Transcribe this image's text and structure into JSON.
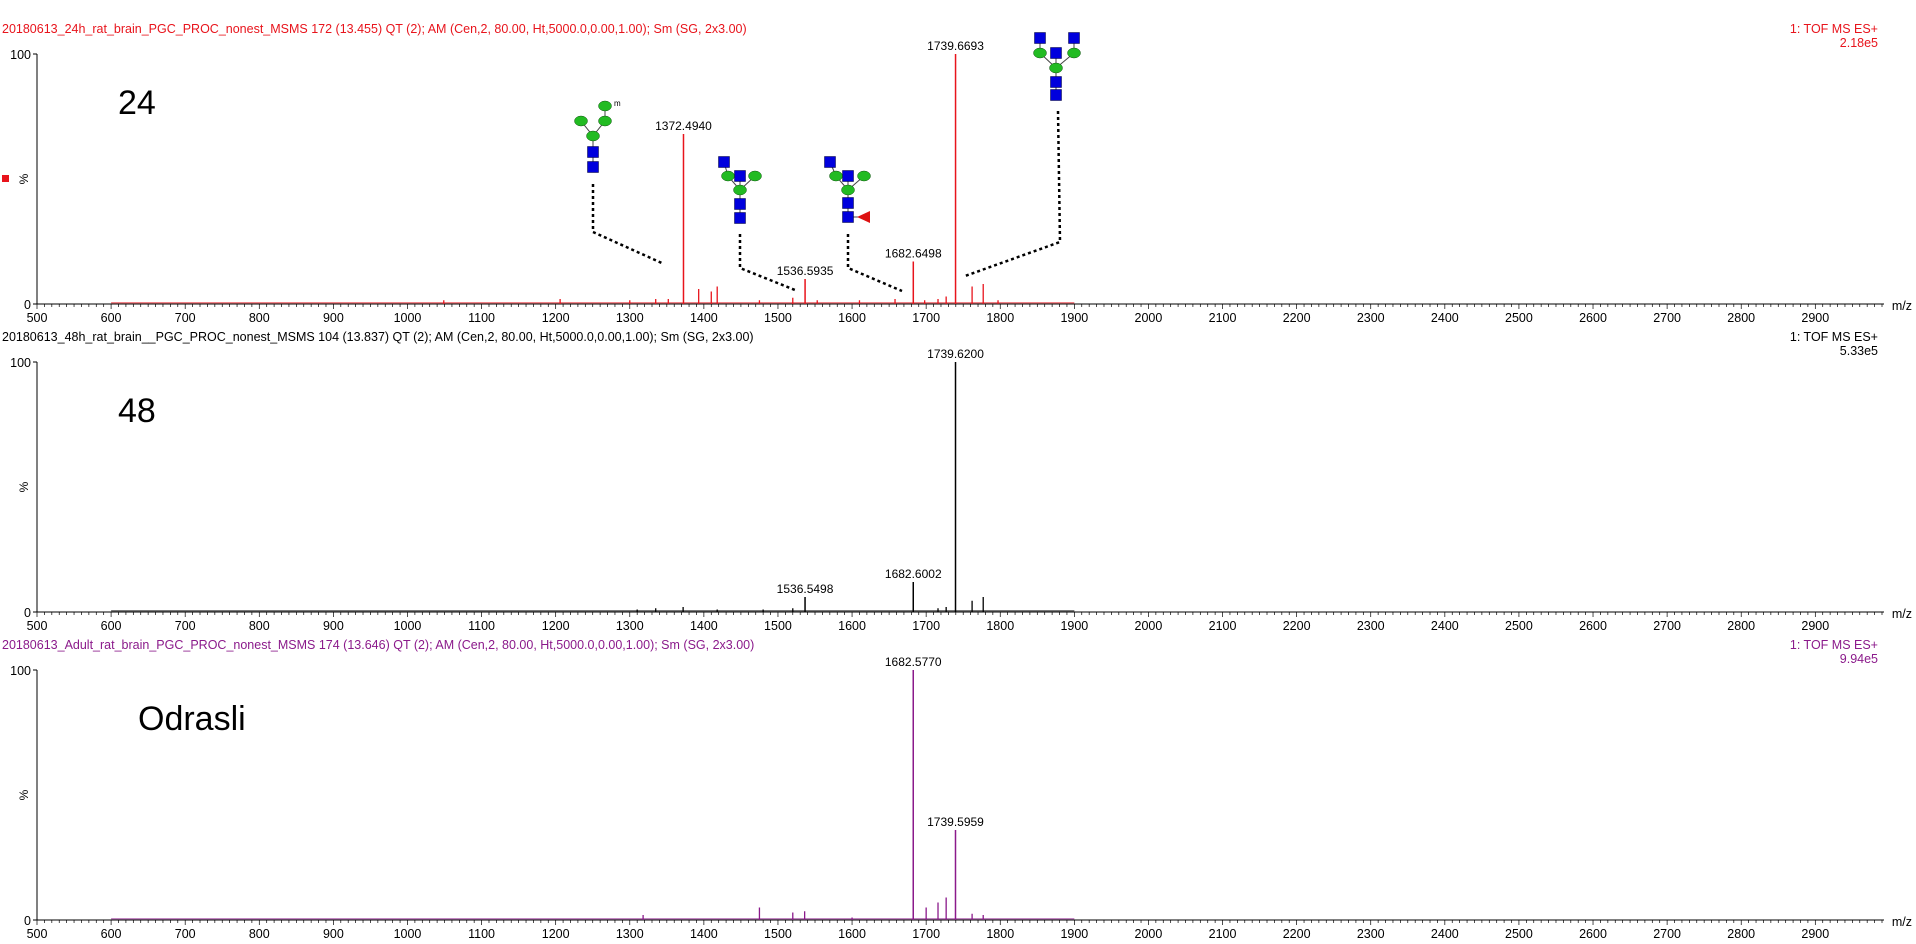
{
  "chart_data": [
    {
      "type": "bar",
      "header": "20180613_24h_rat_brain_PGC_PROC_nonest_MSMS  172 (13.455) QT (2); AM (Cen,2, 80.00, Ht,5000.0,0.00,1.00); Sm (SG, 2x3.00)",
      "mode_label": "1: TOF MS ES+",
      "max_intensity": "2.18e5",
      "sample_label": "24",
      "color": "#e8141c",
      "ylabel": "%",
      "ylim": [
        0,
        100
      ],
      "y_ticks": [
        "100",
        "0"
      ],
      "xlabel": "m/z",
      "xlim": [
        500,
        2990
      ],
      "x_ticks": [
        "500",
        "600",
        "700",
        "800",
        "900",
        "1000",
        "1100",
        "1200",
        "1300",
        "1400",
        "1500",
        "1600",
        "1700",
        "1800",
        "1900",
        "2000",
        "2100",
        "2200",
        "2300",
        "2400",
        "2500",
        "2600",
        "2700",
        "2800",
        "2900"
      ],
      "peaks": [
        {
          "x": 1372.494,
          "y": 68,
          "label": "1372.4940"
        },
        {
          "x": 1536.5935,
          "y": 10,
          "label": "1536.5935"
        },
        {
          "x": 1682.6498,
          "y": 17,
          "label": "1682.6498"
        },
        {
          "x": 1739.6693,
          "y": 100,
          "label": "1739.6693"
        }
      ],
      "minor_peaks": [
        {
          "x": 1049,
          "y": 1.5
        },
        {
          "x": 1206,
          "y": 2
        },
        {
          "x": 1300,
          "y": 1.5
        },
        {
          "x": 1335,
          "y": 2
        },
        {
          "x": 1352,
          "y": 2
        },
        {
          "x": 1393,
          "y": 6
        },
        {
          "x": 1410,
          "y": 5
        },
        {
          "x": 1418,
          "y": 7
        },
        {
          "x": 1475,
          "y": 1.5
        },
        {
          "x": 1520,
          "y": 2.5
        },
        {
          "x": 1553,
          "y": 1.5
        },
        {
          "x": 1610,
          "y": 1.5
        },
        {
          "x": 1658,
          "y": 2
        },
        {
          "x": 1698,
          "y": 1.5
        },
        {
          "x": 1716,
          "y": 2
        },
        {
          "x": 1727,
          "y": 3
        },
        {
          "x": 1762,
          "y": 7
        },
        {
          "x": 1777,
          "y": 8
        },
        {
          "x": 1797,
          "y": 1.5
        }
      ]
    },
    {
      "type": "bar",
      "header": "20180613_48h_rat_brain__PGC_PROC_nonest_MSMS  104 (13.837) QT (2); AM (Cen,2, 80.00, Ht,5000.0,0.00,1.00); Sm (SG, 2x3.00)",
      "mode_label": "1: TOF MS ES+",
      "max_intensity": "5.33e5",
      "sample_label": "48",
      "color": "#000000",
      "ylabel": "%",
      "ylim": [
        0,
        100
      ],
      "y_ticks": [
        "100",
        "0"
      ],
      "xlabel": "m/z",
      "xlim": [
        500,
        2990
      ],
      "x_ticks": [
        "500",
        "600",
        "700",
        "800",
        "900",
        "1000",
        "1100",
        "1200",
        "1300",
        "1400",
        "1500",
        "1600",
        "1700",
        "1800",
        "1900",
        "2000",
        "2100",
        "2200",
        "2300",
        "2400",
        "2500",
        "2600",
        "2700",
        "2800",
        "2900"
      ],
      "peaks": [
        {
          "x": 1536.5498,
          "y": 6,
          "label": "1536.5498"
        },
        {
          "x": 1682.6002,
          "y": 12,
          "label": "1682.6002"
        },
        {
          "x": 1739.62,
          "y": 100,
          "label": "1739.6200"
        }
      ],
      "minor_peaks": [
        {
          "x": 1310,
          "y": 1
        },
        {
          "x": 1335,
          "y": 1.5
        },
        {
          "x": 1372,
          "y": 2
        },
        {
          "x": 1418,
          "y": 1
        },
        {
          "x": 1480,
          "y": 1
        },
        {
          "x": 1520,
          "y": 1.5
        },
        {
          "x": 1716,
          "y": 1.5
        },
        {
          "x": 1727,
          "y": 2
        },
        {
          "x": 1762,
          "y": 4.5
        },
        {
          "x": 1777,
          "y": 6
        }
      ]
    },
    {
      "type": "bar",
      "header": "20180613_Adult_rat_brain_PGC_PROC_nonest_MSMS  174 (13.646) QT (2); AM (Cen,2, 80.00, Ht,5000.0,0.00,1.00); Sm (SG, 2x3.00)",
      "mode_label": "1: TOF MS ES+",
      "max_intensity": "9.94e5",
      "sample_label": "Odrasli",
      "color": "#8b1a8b",
      "ylabel": "%",
      "ylim": [
        0,
        100
      ],
      "y_ticks": [
        "100",
        "0"
      ],
      "xlabel": "m/z",
      "xlim": [
        500,
        2990
      ],
      "x_ticks": [
        "500",
        "600",
        "700",
        "800",
        "900",
        "1000",
        "1100",
        "1200",
        "1300",
        "1400",
        "1500",
        "1600",
        "1700",
        "1800",
        "1900",
        "2000",
        "2100",
        "2200",
        "2300",
        "2400",
        "2500",
        "2600",
        "2700",
        "2800",
        "2900"
      ],
      "peaks": [
        {
          "x": 1682.577,
          "y": 100,
          "label": "1682.5770"
        },
        {
          "x": 1739.5959,
          "y": 36,
          "label": "1739.5959"
        }
      ],
      "minor_peaks": [
        {
          "x": 1318,
          "y": 2
        },
        {
          "x": 1475,
          "y": 5
        },
        {
          "x": 1520,
          "y": 3
        },
        {
          "x": 1536,
          "y": 3.5
        },
        {
          "x": 1700,
          "y": 5
        },
        {
          "x": 1716,
          "y": 7
        },
        {
          "x": 1727,
          "y": 9
        },
        {
          "x": 1762,
          "y": 2.5
        },
        {
          "x": 1777,
          "y": 2
        },
        {
          "x": 1600,
          "y": 1
        }
      ]
    }
  ],
  "glycan_legend": {
    "hexnac_color": "#0000dd",
    "hexose_color": "#22bb22",
    "fucose_color": "#dd1111",
    "antenna_mark": "m"
  }
}
